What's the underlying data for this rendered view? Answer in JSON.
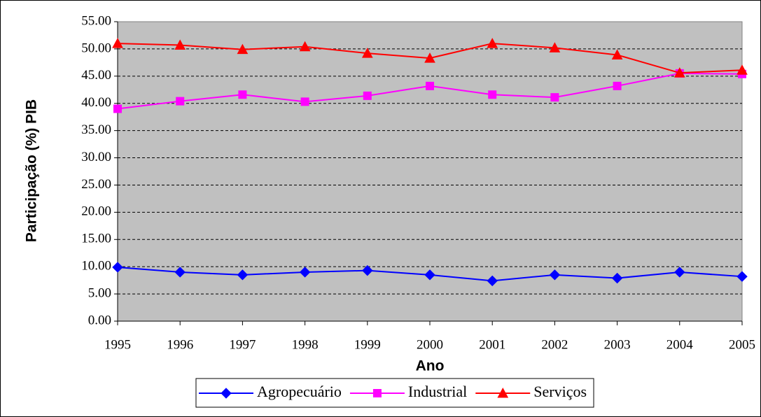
{
  "chart_data": {
    "type": "line",
    "x_label": "Ano",
    "y_label": "Participação (%)  PIB",
    "categories": [
      "1995",
      "1996",
      "1997",
      "1998",
      "1999",
      "2000",
      "2001",
      "2002",
      "2003",
      "2004",
      "2005"
    ],
    "series": [
      {
        "name": "Agropecuário",
        "color": "#0000ff",
        "marker": "diamond",
        "values": [
          9.9,
          9.0,
          8.5,
          9.0,
          9.3,
          8.5,
          7.4,
          8.5,
          7.9,
          9.0,
          8.2
        ]
      },
      {
        "name": "Industrial",
        "color": "#ff00ff",
        "marker": "square",
        "values": [
          39.0,
          40.4,
          41.6,
          40.3,
          41.4,
          43.2,
          41.6,
          41.1,
          43.2,
          45.5,
          45.4
        ]
      },
      {
        "name": "Serviços",
        "color": "#ff0000",
        "marker": "triangle",
        "values": [
          51.0,
          50.7,
          49.9,
          50.4,
          49.2,
          48.3,
          51.0,
          50.2,
          48.9,
          45.6,
          46.1
        ]
      }
    ],
    "ylim": [
      0,
      55
    ],
    "yticks": [
      {
        "value": 0,
        "label": "0.00"
      },
      {
        "value": 5,
        "label": "5.00"
      },
      {
        "value": 10,
        "label": "10.00"
      },
      {
        "value": 15,
        "label": "15.00"
      },
      {
        "value": 20,
        "label": "20.00"
      },
      {
        "value": 25,
        "label": "25.00"
      },
      {
        "value": 30,
        "label": "30.00"
      },
      {
        "value": 35,
        "label": "35.00"
      },
      {
        "value": 40,
        "label": "40.00"
      },
      {
        "value": 45,
        "label": "45.00"
      },
      {
        "value": 50,
        "label": "50.00"
      },
      {
        "value": 55,
        "label": "55.00"
      }
    ],
    "grid": true,
    "plot_background": "#c0c0c0",
    "legend": "bottom"
  }
}
